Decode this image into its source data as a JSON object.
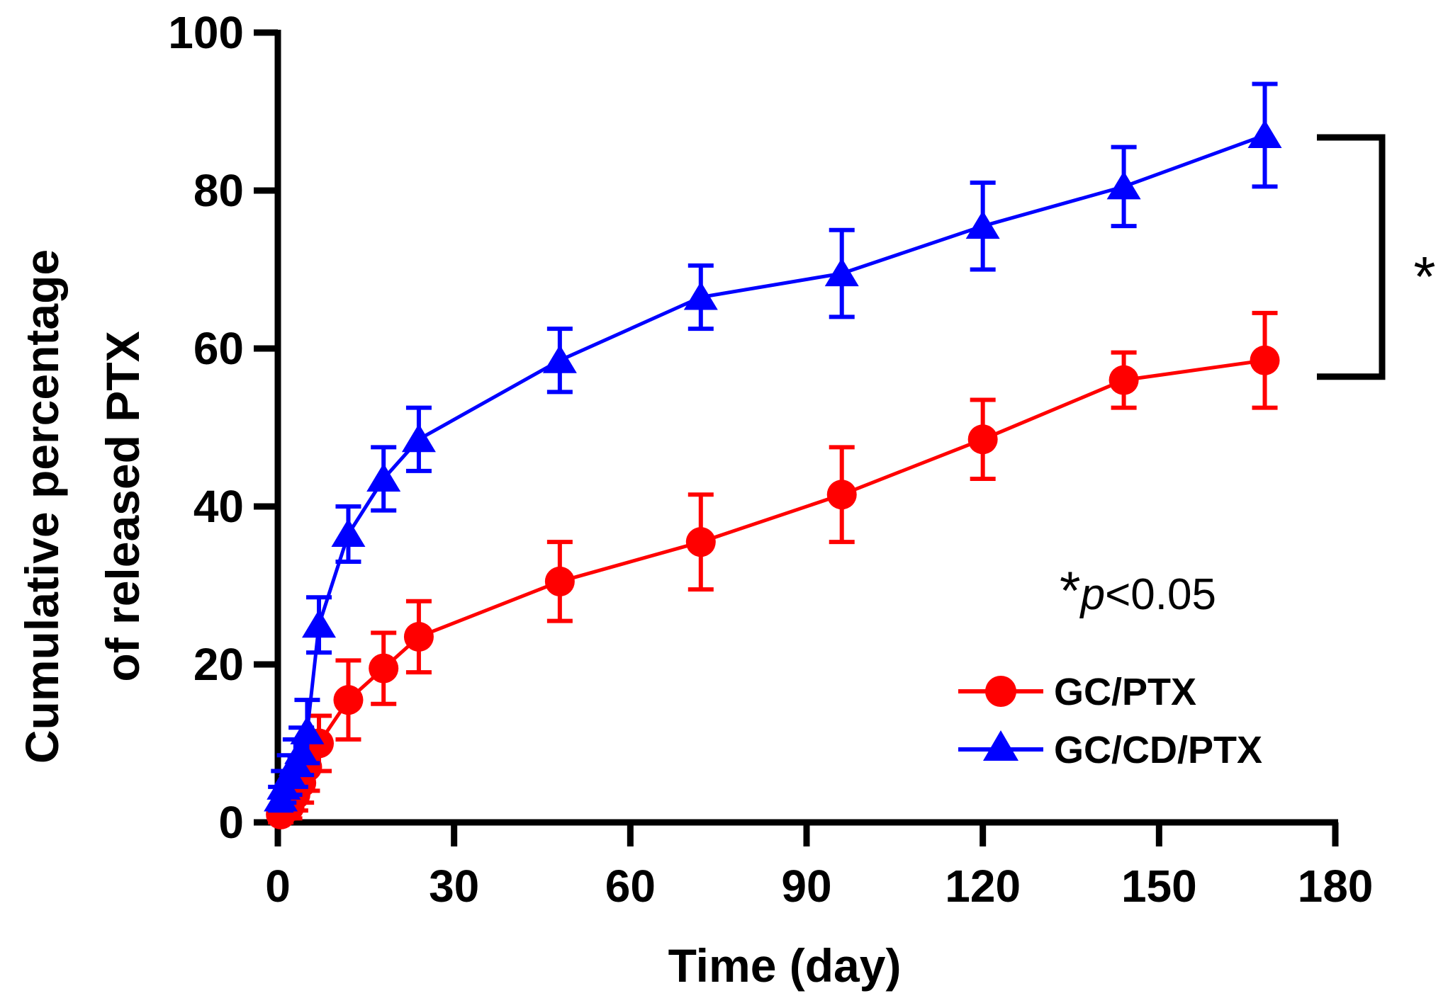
{
  "chart_data": {
    "type": "line",
    "title": "",
    "xlabel": "Time (day)",
    "ylabel_line1": "Cumulative percentage",
    "ylabel_line2": "of released PTX",
    "xlim": [
      0,
      180
    ],
    "ylim": [
      0,
      100
    ],
    "xticks": [
      0,
      30,
      60,
      90,
      120,
      150,
      180
    ],
    "yticks": [
      0,
      20,
      40,
      60,
      80,
      100
    ],
    "grid": false,
    "legend_position": "bottom-right",
    "annotation": {
      "star": "*",
      "p_symbol": "p",
      "rest": "<0.05"
    },
    "significance_bracket": {
      "label": "*",
      "between": [
        "GC/CD/PTX",
        "GC/PTX"
      ]
    },
    "series": [
      {
        "name": "GC/PTX",
        "color": "#ff0000",
        "marker": "circle",
        "x": [
          0.5,
          1,
          2,
          3,
          4,
          5,
          7,
          12,
          18,
          24,
          48,
          72,
          96,
          120,
          144,
          168
        ],
        "y": [
          1,
          1.5,
          2,
          3.5,
          5,
          7,
          10,
          15.5,
          19.5,
          23.5,
          30.5,
          35.5,
          41.5,
          48.5,
          56,
          58.5
        ],
        "err": [
          1,
          1,
          1.5,
          2,
          2.5,
          3,
          3.5,
          5,
          4.5,
          4.5,
          5,
          6,
          6,
          5,
          3.5,
          6
        ]
      },
      {
        "name": "GC/CD/PTX",
        "color": "#0000ff",
        "marker": "triangle",
        "x": [
          0.5,
          1,
          2,
          3,
          4,
          5,
          7,
          12,
          18,
          24,
          48,
          72,
          96,
          120,
          144,
          168
        ],
        "y": [
          3,
          4.5,
          6,
          7.5,
          9,
          11.5,
          25,
          36.5,
          43.5,
          48.5,
          58.5,
          66.5,
          69.5,
          75.5,
          80.5,
          87
        ],
        "err": [
          1.5,
          2,
          2.5,
          3,
          3,
          4,
          3.5,
          3.5,
          4,
          4,
          4,
          4,
          5.5,
          5.5,
          5,
          6.5
        ]
      }
    ]
  }
}
